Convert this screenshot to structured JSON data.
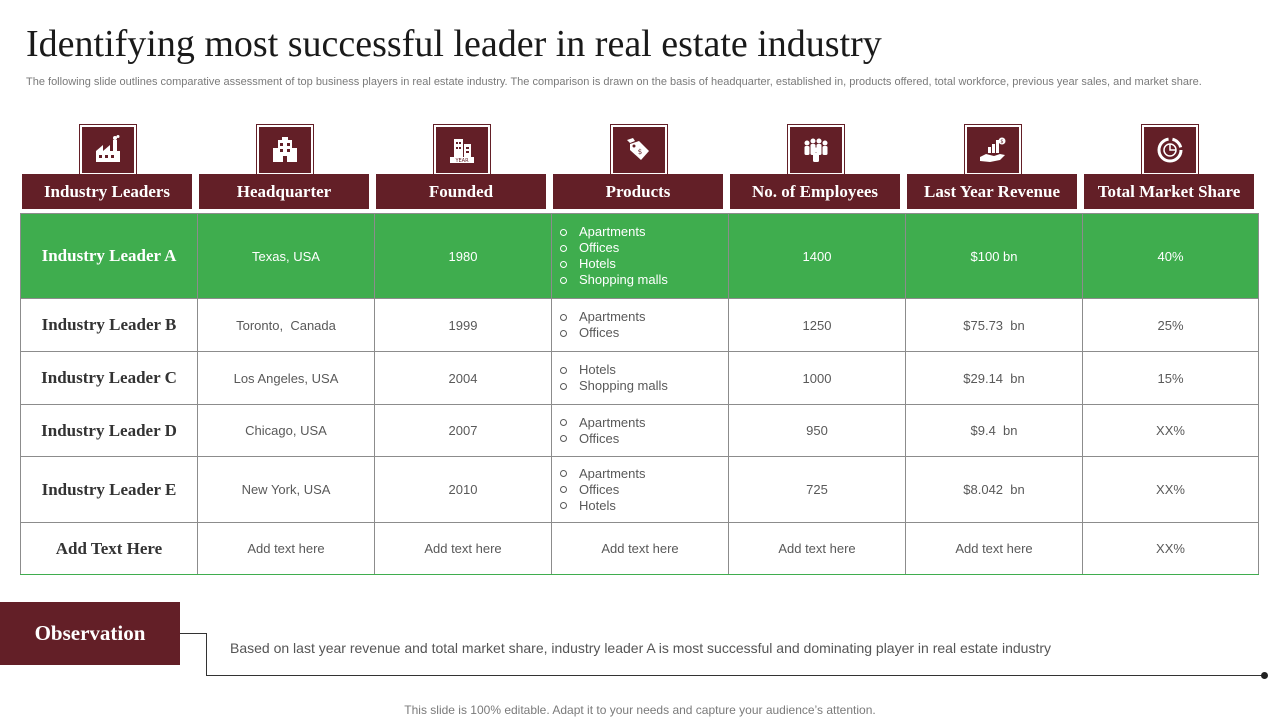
{
  "title": "Identifying most successful leader in real estate industry",
  "subtitle": "The following slide outlines comparative assessment of top business players in real estate industry. The comparison is drawn on the basis of headquarter, established in, products offered, total workforce, previous year sales, and market share.",
  "columns": [
    {
      "label": "Industry Leaders",
      "icon": "factory-icon"
    },
    {
      "label": "Headquarter",
      "icon": "building-icon"
    },
    {
      "label": "Founded",
      "icon": "year-building-icon"
    },
    {
      "label": "Products",
      "icon": "price-tag-icon"
    },
    {
      "label": "No. of Employees",
      "icon": "people-group-icon"
    },
    {
      "label": "Last Year Revenue",
      "icon": "revenue-hand-icon"
    },
    {
      "label": "Total Market Share",
      "icon": "donut-chart-icon"
    }
  ],
  "rows": [
    {
      "leader": "Industry Leader A",
      "headquarter": "Texas, USA",
      "founded": "1980",
      "products": [
        "Apartments",
        "Offices",
        "Hotels",
        "Shopping malls"
      ],
      "employees": "1400",
      "revenue": "$100 bn",
      "share": "40%"
    },
    {
      "leader": "Industry Leader B",
      "headquarter": "Toronto,  Canada",
      "founded": "1999",
      "products": [
        "Apartments",
        "Offices"
      ],
      "employees": "1250",
      "revenue": "$75.73  bn",
      "share": "25%"
    },
    {
      "leader": "Industry Leader C",
      "headquarter": "Los Angeles, USA",
      "founded": "2004",
      "products": [
        "Hotels",
        "Shopping malls"
      ],
      "employees": "1000",
      "revenue": "$29.14  bn",
      "share": "15%"
    },
    {
      "leader": "Industry Leader D",
      "headquarter": "Chicago, USA",
      "founded": "2007",
      "products": [
        "Apartments",
        "Offices"
      ],
      "employees": "950",
      "revenue": "$9.4  bn",
      "share": "XX%"
    },
    {
      "leader": "Industry Leader E",
      "headquarter": "New York, USA",
      "founded": "2010",
      "products": [
        "Apartments",
        "Offices",
        "Hotels"
      ],
      "employees": "725",
      "revenue": "$8.042  bn",
      "share": "XX%"
    },
    {
      "leader": "Add Text Here",
      "headquarter": "Add text here",
      "founded": "Add text here",
      "products_text": "Add text here",
      "employees": "Add text here",
      "revenue": "Add text here",
      "share": "XX%"
    }
  ],
  "observation": {
    "label": "Observation",
    "text": "Based on last year revenue and total market share, industry leader A is most successful and dominating player in real estate industry"
  },
  "footer": "This slide is 100% editable. Adapt it to your needs and capture your audience’s attention.",
  "colors": {
    "maroon": "#631f27",
    "highlight": "#3fad4e"
  }
}
